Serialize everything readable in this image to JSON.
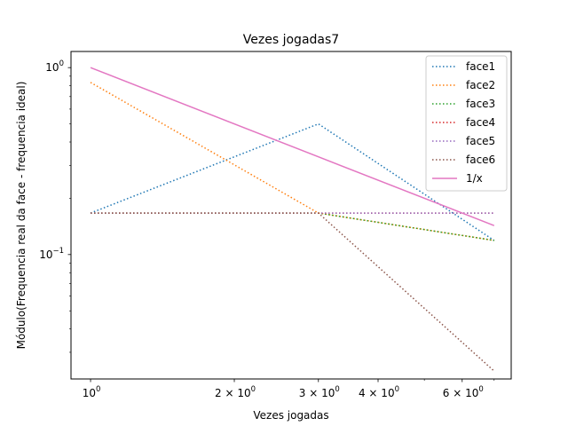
{
  "chart_data": {
    "type": "line",
    "title": "Vezes jogadas7",
    "xlabel": "Vezes jogadas",
    "ylabel": "Módulo(Frequencia real da face - frequencia ideal)",
    "xscale": "log",
    "yscale": "log",
    "xlim": [
      0.91,
      7.6
    ],
    "ylim": [
      0.0216,
      1.22
    ],
    "legend_position": "top-right",
    "x": [
      1,
      3,
      7
    ],
    "x_ticks": [
      {
        "value": 1,
        "base": "10",
        "exp": "0"
      },
      {
        "value": 2,
        "base": "2 × 10",
        "exp": "0"
      },
      {
        "value": 3,
        "base": "3 × 10",
        "exp": "0"
      },
      {
        "value": 4,
        "base": "4 × 10",
        "exp": "0"
      },
      {
        "value": 6,
        "base": "6 × 10",
        "exp": "0"
      }
    ],
    "y_ticks": [
      {
        "value": 1,
        "base": "10",
        "exp": "0"
      },
      {
        "value": 0.1,
        "base": "10",
        "exp": "−1"
      }
    ],
    "series": [
      {
        "name": "face1",
        "values": [
          0.1667,
          0.5,
          0.119
        ],
        "color": "#1f77b4",
        "style": "dotted"
      },
      {
        "name": "face2",
        "values": [
          0.8333,
          0.1667,
          0.119
        ],
        "color": "#ff7f0e",
        "style": "dotted"
      },
      {
        "name": "face3",
        "values": [
          0.1667,
          0.1667,
          0.119
        ],
        "color": "#2ca02c",
        "style": "dotted"
      },
      {
        "name": "face4",
        "values": [
          0.1667,
          0.1667,
          0.1667
        ],
        "color": "#d62728",
        "style": "dotted"
      },
      {
        "name": "face5",
        "values": [
          0.1667,
          0.1667,
          0.1667
        ],
        "color": "#9467bd",
        "style": "dotted"
      },
      {
        "name": "face6",
        "values": [
          0.1667,
          0.1667,
          0.0238
        ],
        "color": "#8c564b",
        "style": "dotted"
      },
      {
        "name": "1/x",
        "values": [
          1.0,
          0.3333,
          0.1429
        ],
        "color": "#e377c2",
        "style": "solid"
      }
    ]
  }
}
